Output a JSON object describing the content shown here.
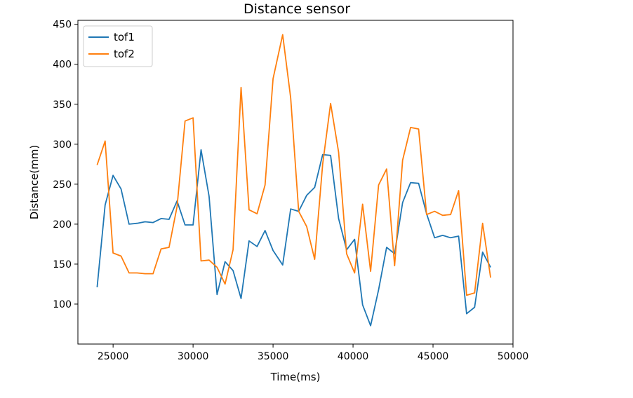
{
  "chart_data": {
    "type": "line",
    "title": "Distance sensor",
    "xlabel": "Time(ms)",
    "ylabel": "Distance(mm)",
    "xlim": [
      22800,
      50000
    ],
    "ylim": [
      50,
      455
    ],
    "xticks": [
      25000,
      30000,
      35000,
      40000,
      45000,
      50000
    ],
    "yticks": [
      100,
      150,
      200,
      250,
      300,
      350,
      400,
      450
    ],
    "grid": false,
    "legend_position": "top-left",
    "series": [
      {
        "name": "tof1",
        "color": "#1f77b4",
        "x": [
          24000,
          24500,
          25000,
          25500,
          26000,
          26500,
          27000,
          27500,
          28000,
          28500,
          29000,
          29500,
          30000,
          30500,
          31000,
          31500,
          32000,
          32500,
          33000,
          33500,
          34000,
          34500,
          35000,
          35600,
          36100,
          36600,
          37100,
          37600,
          38100,
          38600,
          39100,
          39600,
          40100,
          40600,
          41100,
          41600,
          42100,
          42600,
          43100,
          43600,
          44100,
          44600,
          45100,
          45600,
          46100,
          46600,
          47100,
          47600,
          48100,
          48600
        ],
        "y": [
          121,
          224,
          261,
          244,
          200,
          201,
          203,
          202,
          207,
          206,
          229,
          199,
          199,
          293,
          235,
          112,
          153,
          142,
          107,
          179,
          172,
          192,
          167,
          149,
          219,
          216,
          236,
          246,
          287,
          286,
          207,
          168,
          181,
          99,
          73,
          118,
          171,
          163,
          227,
          252,
          251,
          213,
          183,
          186,
          183,
          185,
          88,
          96,
          165,
          146
        ]
      },
      {
        "name": "tof2",
        "color": "#ff7f0e",
        "x": [
          24000,
          24500,
          25000,
          25500,
          26000,
          26500,
          27000,
          27500,
          28000,
          28500,
          29000,
          29500,
          30000,
          30500,
          31000,
          31500,
          32000,
          32500,
          33000,
          33500,
          34000,
          34500,
          35000,
          35600,
          36100,
          36600,
          37100,
          37600,
          38100,
          38600,
          39100,
          39600,
          40100,
          40600,
          41100,
          41600,
          42100,
          42600,
          43100,
          43600,
          44100,
          44600,
          45100,
          45600,
          46100,
          46600,
          47100,
          47600,
          48100,
          48600
        ],
        "y": [
          274,
          304,
          164,
          160,
          139,
          139,
          138,
          138,
          169,
          171,
          222,
          329,
          333,
          154,
          155,
          146,
          125,
          168,
          371,
          218,
          213,
          249,
          382,
          437,
          358,
          216,
          197,
          156,
          275,
          351,
          290,
          163,
          139,
          225,
          141,
          249,
          269,
          148,
          280,
          321,
          319,
          212,
          216,
          211,
          212,
          242,
          111,
          114,
          201,
          133
        ]
      }
    ]
  }
}
